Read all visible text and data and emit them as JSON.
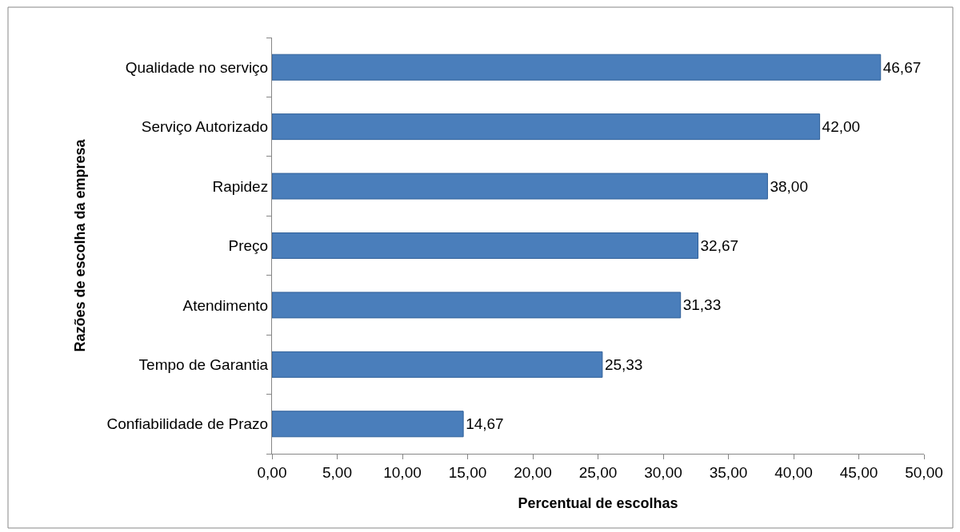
{
  "chart_data": {
    "type": "bar",
    "orientation": "horizontal",
    "categories": [
      "Qualidade no serviço",
      "Serviço Autorizado",
      "Rapidez",
      "Preço",
      "Atendimento",
      "Tempo de Garantia",
      "Confiabilidade de Prazo"
    ],
    "values": [
      46.67,
      42.0,
      38.0,
      32.67,
      31.33,
      25.33,
      14.67
    ],
    "value_labels": [
      "46,67",
      "42,00",
      "38,00",
      "32,67",
      "31,33",
      "25,33",
      "14,67"
    ],
    "color": "#4a7ebb",
    "xlim": [
      0,
      50
    ],
    "xticks": [
      {
        "value": 0,
        "label": "0,00"
      },
      {
        "value": 5,
        "label": "5,00"
      },
      {
        "value": 10,
        "label": "10,00"
      },
      {
        "value": 15,
        "label": "15,00"
      },
      {
        "value": 20,
        "label": "20,00"
      },
      {
        "value": 25,
        "label": "25,00"
      },
      {
        "value": 30,
        "label": "30,00"
      },
      {
        "value": 35,
        "label": "35,00"
      },
      {
        "value": 40,
        "label": "40,00"
      },
      {
        "value": 45,
        "label": "45,00"
      },
      {
        "value": 50,
        "label": "50,00"
      }
    ],
    "xlabel": "Percentual de escolhas",
    "ylabel": "Razões de escolha da empresa"
  }
}
